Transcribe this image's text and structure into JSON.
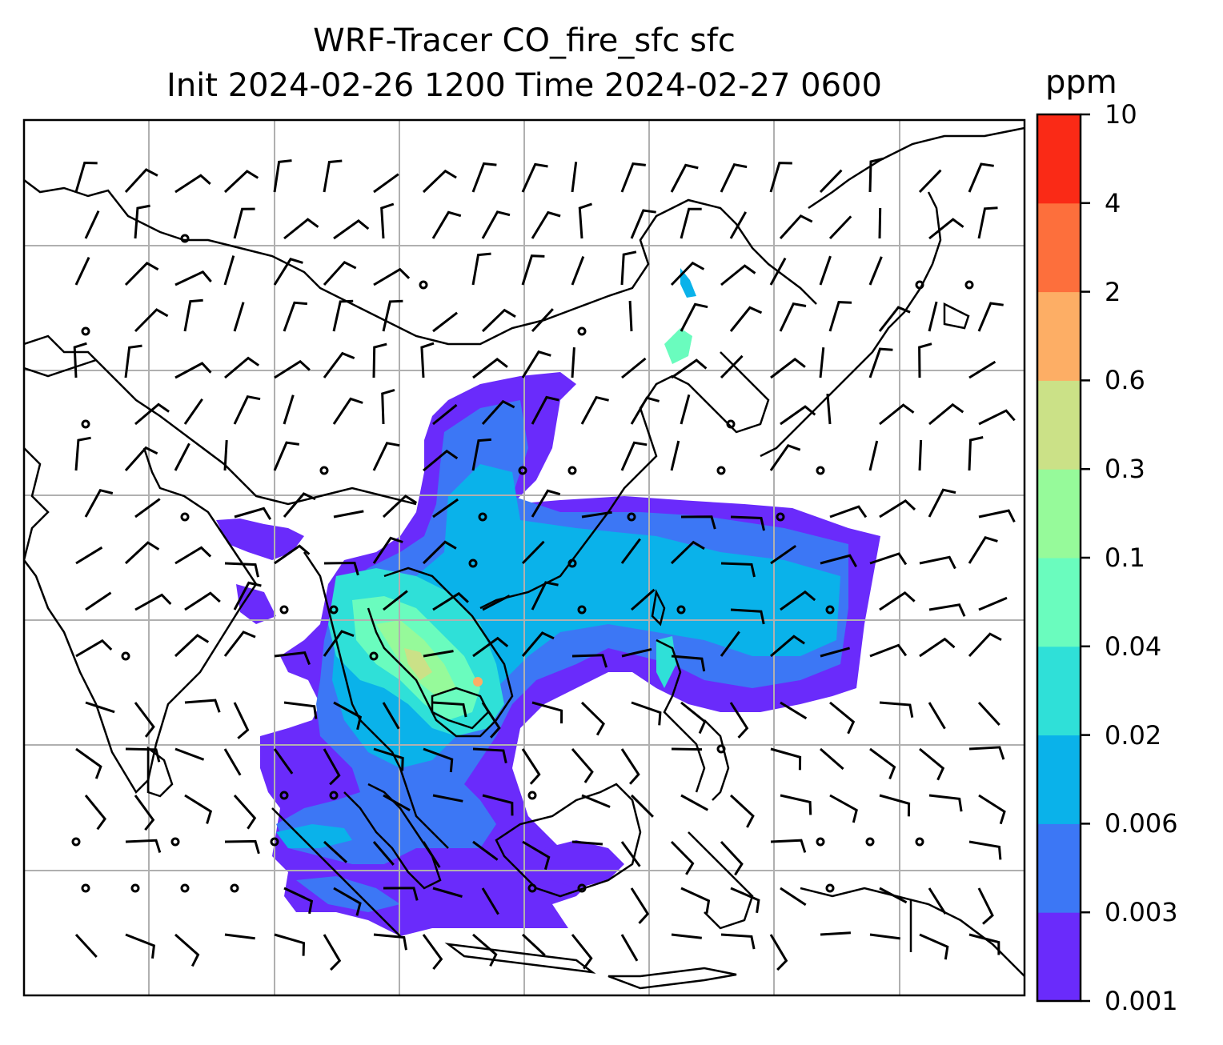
{
  "title": {
    "line1": "WRF-Tracer CO_fire_sfc sfc",
    "line2": "Init 2024-02-26 1200 Time 2024-02-27 0600"
  },
  "colorbar": {
    "unit": "ppm",
    "ticks": [
      "0.001",
      "0.003",
      "0.006",
      "0.02",
      "0.04",
      "0.1",
      "0.3",
      "0.6",
      "2",
      "4",
      "10"
    ],
    "colors": [
      "#6a2bfb",
      "#3c77f5",
      "#0ab2ea",
      "#2fe0d8",
      "#6afcbe",
      "#96fa9a",
      "#cbe187",
      "#fdae65",
      "#fd6f3c",
      "#fa2a16"
    ]
  },
  "map": {
    "grid": true,
    "field": "CO_fire_sfc",
    "overlay": "wind barbs"
  },
  "chart_data": {
    "type": "heatmap",
    "title": "WRF-Tracer CO_fire_sfc sfc\nInit 2024-02-26 1200 Time 2024-02-27 0600",
    "colorbar_label": "ppm",
    "levels": [
      0.001,
      0.003,
      0.006,
      0.02,
      0.04,
      0.1,
      0.3,
      0.6,
      2,
      4,
      10
    ],
    "grid": true
  }
}
